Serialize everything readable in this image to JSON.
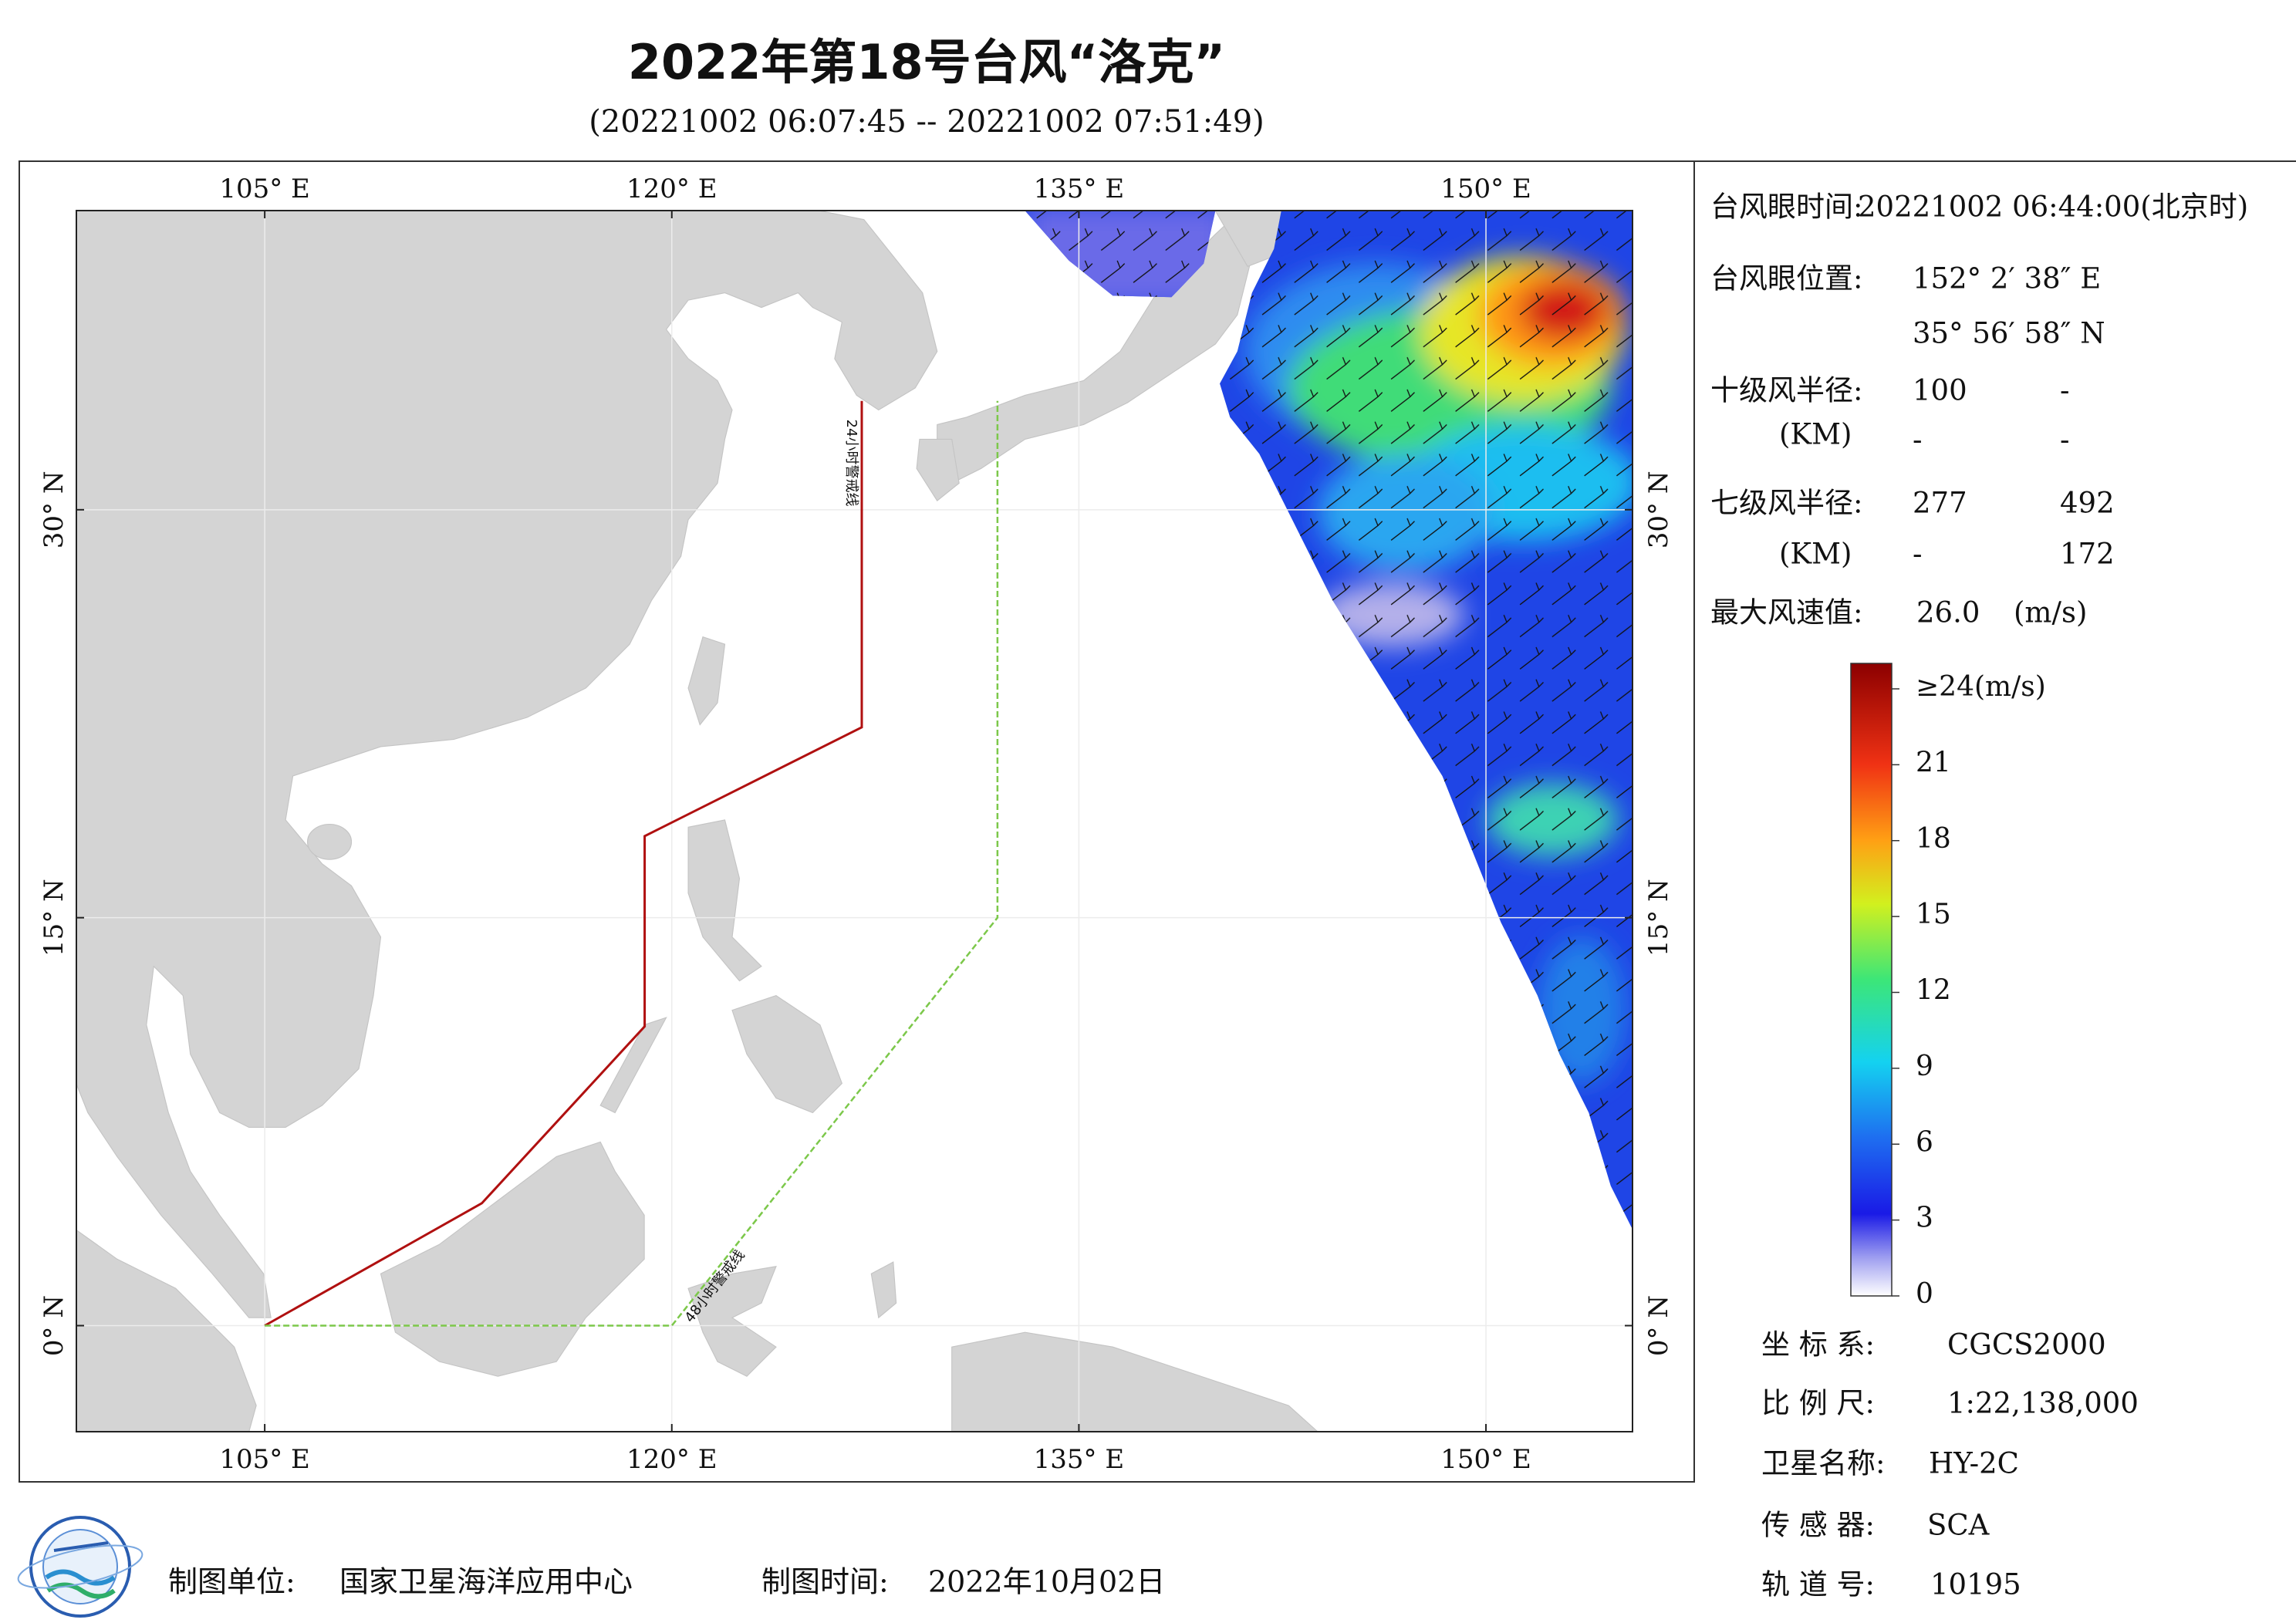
{
  "header": {
    "title": "2022年第18号台风“洛克”",
    "subtitle": "(20221002 06:07:45 -- 20221002 07:51:49)"
  },
  "map": {
    "xlim": [
      98.06,
      155.4
    ],
    "ylim": [
      -3.9,
      41.0
    ],
    "xticks": [
      {
        "value": 105,
        "label": "105° E"
      },
      {
        "value": 120,
        "label": "120° E"
      },
      {
        "value": 135,
        "label": "135° E"
      },
      {
        "value": 150,
        "label": "150° E"
      }
    ],
    "yticks": [
      {
        "value": 0,
        "label": "0° N"
      },
      {
        "value": 15,
        "label": "15° N"
      },
      {
        "value": 30,
        "label": "30° N"
      }
    ],
    "warning_lines": [
      {
        "label": "24小时警戒线",
        "color": "#b01010",
        "lon": [
          105,
          113,
          119,
          119,
          127,
          127
        ],
        "lat": [
          0,
          4.5,
          11,
          18,
          22,
          34
        ]
      },
      {
        "label": "48小时警戒线",
        "color": "#7cc84a",
        "lon": [
          105,
          120,
          132,
          132
        ],
        "lat": [
          0,
          0,
          15,
          34
        ]
      }
    ]
  },
  "info": {
    "eye_time": {
      "label": "台风眼时间:",
      "value": "20221002 06:44:00(北京时)"
    },
    "eye_position": {
      "label": "台风眼位置:",
      "lon": "152° 2′ 38″ E",
      "lat": "35° 56′ 58″ N"
    },
    "r10": {
      "label": "十级风半径:",
      "unit": "(KM)",
      "values": [
        100,
        "-",
        "-",
        "-"
      ]
    },
    "r7": {
      "label": "七级风半径:",
      "unit": "(KM)",
      "values": [
        277,
        492,
        "-",
        172
      ]
    },
    "max_wind": {
      "label": "最大风速值:",
      "value": "26.0",
      "unit": "(m/s)"
    }
  },
  "colorbar": {
    "lim": [
      0,
      24
    ],
    "ticks": [
      {
        "value": 24,
        "label": "≥24(m/s)"
      },
      21,
      18,
      15,
      12,
      9,
      6,
      3,
      0
    ]
  },
  "meta": [
    {
      "label": "坐 标 系:",
      "value": "CGCS2000"
    },
    {
      "label": "比 例 尺:",
      "value": "1:22,138,000"
    },
    {
      "label": "卫星名称:",
      "value": "HY-2C"
    },
    {
      "label": "传 感 器:",
      "value": "SCA"
    },
    {
      "label": "轨 道 号:",
      "value": "10195"
    }
  ],
  "footer": {
    "unit_label": "制图单位:",
    "unit": "国家卫星海洋应用中心",
    "time_label": "制图时间:",
    "time": "2022年10月02日"
  }
}
